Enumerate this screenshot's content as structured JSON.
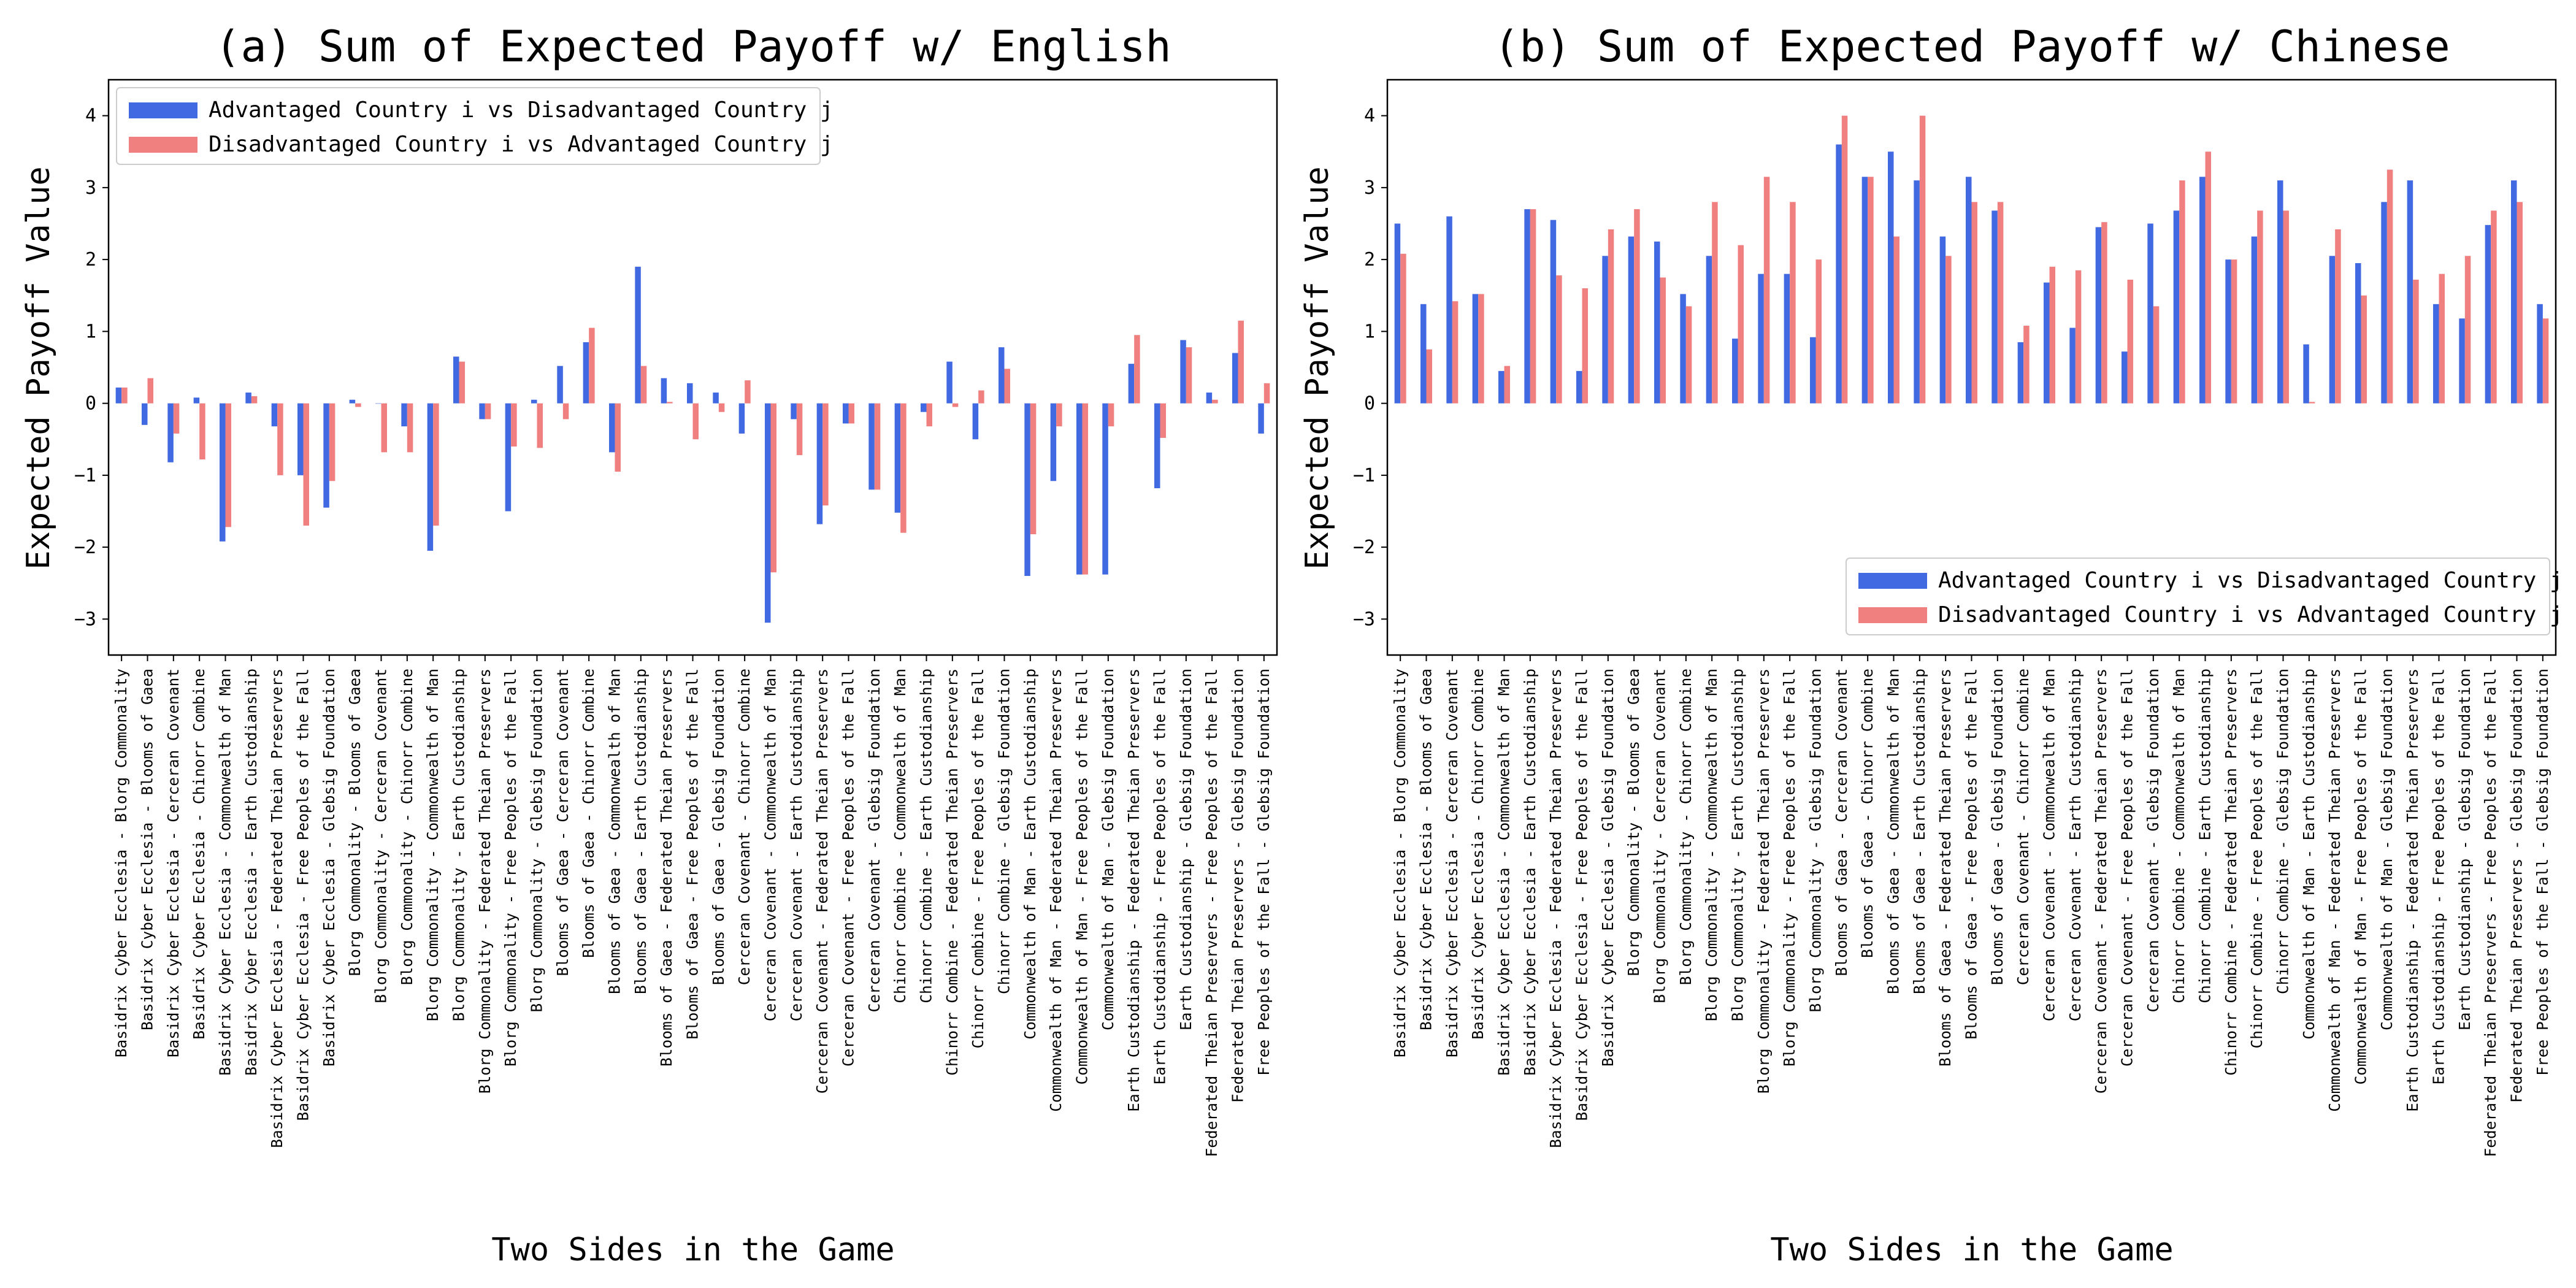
{
  "chart_data": [
    {
      "type": "bar",
      "title": "(a) Sum of Expected Payoff w/ English",
      "xlabel": "Two Sides in the Game",
      "ylabel": "Expected Payoff Value",
      "ylim": [
        -3.5,
        4.5
      ],
      "yticks": [
        -3,
        -2,
        -1,
        0,
        1,
        2,
        3,
        4
      ],
      "grid": false,
      "legend_position": "top-left",
      "colors": [
        "#4169e1",
        "#f08080"
      ],
      "categories": [
        "Basidrix Cyber Ecclesia - Blorg Commonality",
        "Basidrix Cyber Ecclesia - Blooms of Gaea",
        "Basidrix Cyber Ecclesia - Cerceran Covenant",
        "Basidrix Cyber Ecclesia - Chinorr Combine",
        "Basidrix Cyber Ecclesia - Commonwealth of Man",
        "Basidrix Cyber Ecclesia - Earth Custodianship",
        "Basidrix Cyber Ecclesia - Federated Theian Preservers",
        "Basidrix Cyber Ecclesia - Free Peoples of the Fall",
        "Basidrix Cyber Ecclesia - Glebsig Foundation",
        "Blorg Commonality - Blooms of Gaea",
        "Blorg Commonality - Cerceran Covenant",
        "Blorg Commonality - Chinorr Combine",
        "Blorg Commonality - Commonwealth of Man",
        "Blorg Commonality - Earth Custodianship",
        "Blorg Commonality - Federated Theian Preservers",
        "Blorg Commonality - Free Peoples of the Fall",
        "Blorg Commonality - Glebsig Foundation",
        "Blooms of Gaea - Cerceran Covenant",
        "Blooms of Gaea - Chinorr Combine",
        "Blooms of Gaea - Commonwealth of Man",
        "Blooms of Gaea - Earth Custodianship",
        "Blooms of Gaea - Federated Theian Preservers",
        "Blooms of Gaea - Free Peoples of the Fall",
        "Blooms of Gaea - Glebsig Foundation",
        "Cerceran Covenant - Chinorr Combine",
        "Cerceran Covenant - Commonwealth of Man",
        "Cerceran Covenant - Earth Custodianship",
        "Cerceran Covenant - Federated Theian Preservers",
        "Cerceran Covenant - Free Peoples of the Fall",
        "Cerceran Covenant - Glebsig Foundation",
        "Chinorr Combine - Commonwealth of Man",
        "Chinorr Combine - Earth Custodianship",
        "Chinorr Combine - Federated Theian Preservers",
        "Chinorr Combine - Free Peoples of the Fall",
        "Chinorr Combine - Glebsig Foundation",
        "Commonwealth of Man - Earth Custodianship",
        "Commonwealth of Man - Federated Theian Preservers",
        "Commonwealth of Man - Free Peoples of the Fall",
        "Commonwealth of Man - Glebsig Foundation",
        "Earth Custodianship - Federated Theian Preservers",
        "Earth Custodianship - Free Peoples of the Fall",
        "Earth Custodianship - Glebsig Foundation",
        "Federated Theian Preservers - Free Peoples of the Fall",
        "Federated Theian Preservers - Glebsig Foundation",
        "Free Peoples of the Fall - Glebsig Foundation"
      ],
      "series": [
        {
          "name": "Advantaged Country i vs Disadvantaged Country j",
          "values": [
            0.22,
            -0.3,
            -0.82,
            0.08,
            -1.92,
            0.15,
            -0.32,
            -1.0,
            -1.45,
            0.05,
            0.0,
            -0.32,
            -2.05,
            0.65,
            -0.22,
            -1.5,
            0.05,
            0.52,
            0.85,
            -0.68,
            1.9,
            0.35,
            0.28,
            0.15,
            -0.42,
            -3.05,
            -0.22,
            -1.68,
            -0.28,
            -1.2,
            -1.52,
            -0.12,
            0.58,
            -0.5,
            0.78,
            -2.4,
            -1.08,
            -2.38,
            -2.38,
            0.55,
            -1.18,
            0.88,
            0.15,
            0.7,
            -0.42
          ]
        },
        {
          "name": "Disadvantaged Country i vs Advantaged Country j",
          "values": [
            0.22,
            0.35,
            -0.42,
            -0.78,
            -1.72,
            0.1,
            -1.0,
            -1.7,
            -1.08,
            -0.05,
            -0.68,
            -0.68,
            -1.7,
            0.58,
            -0.22,
            -0.6,
            -0.62,
            -0.22,
            1.05,
            -0.95,
            0.52,
            0.02,
            -0.5,
            -0.12,
            0.32,
            -2.35,
            -0.72,
            -1.42,
            -0.28,
            -1.2,
            -1.8,
            -0.32,
            -0.05,
            0.18,
            0.48,
            -1.82,
            -0.32,
            -2.38,
            -0.32,
            0.95,
            -0.48,
            0.78,
            0.05,
            1.15,
            0.28
          ]
        }
      ]
    },
    {
      "type": "bar",
      "title": "(b) Sum of Expected Payoff w/ Chinese",
      "xlabel": "Two Sides in the Game",
      "ylabel": "Expected Payoff Value",
      "ylim": [
        -3.5,
        4.5
      ],
      "yticks": [
        -3,
        -2,
        -1,
        0,
        1,
        2,
        3,
        4
      ],
      "grid": false,
      "legend_position": "bottom-right",
      "colors": [
        "#4169e1",
        "#f08080"
      ],
      "categories": [
        "Basidrix Cyber Ecclesia - Blorg Commonality",
        "Basidrix Cyber Ecclesia - Blooms of Gaea",
        "Basidrix Cyber Ecclesia - Cerceran Covenant",
        "Basidrix Cyber Ecclesia - Chinorr Combine",
        "Basidrix Cyber Ecclesia - Commonwealth of Man",
        "Basidrix Cyber Ecclesia - Earth Custodianship",
        "Basidrix Cyber Ecclesia - Federated Theian Preservers",
        "Basidrix Cyber Ecclesia - Free Peoples of the Fall",
        "Basidrix Cyber Ecclesia - Glebsig Foundation",
        "Blorg Commonality - Blooms of Gaea",
        "Blorg Commonality - Cerceran Covenant",
        "Blorg Commonality - Chinorr Combine",
        "Blorg Commonality - Commonwealth of Man",
        "Blorg Commonality - Earth Custodianship",
        "Blorg Commonality - Federated Theian Preservers",
        "Blorg Commonality - Free Peoples of the Fall",
        "Blorg Commonality - Glebsig Foundation",
        "Blooms of Gaea - Cerceran Covenant",
        "Blooms of Gaea - Chinorr Combine",
        "Blooms of Gaea - Commonwealth of Man",
        "Blooms of Gaea - Earth Custodianship",
        "Blooms of Gaea - Federated Theian Preservers",
        "Blooms of Gaea - Free Peoples of the Fall",
        "Blooms of Gaea - Glebsig Foundation",
        "Cerceran Covenant - Chinorr Combine",
        "Cerceran Covenant - Commonwealth of Man",
        "Cerceran Covenant - Earth Custodianship",
        "Cerceran Covenant - Federated Theian Preservers",
        "Cerceran Covenant - Free Peoples of the Fall",
        "Cerceran Covenant - Glebsig Foundation",
        "Chinorr Combine - Commonwealth of Man",
        "Chinorr Combine - Earth Custodianship",
        "Chinorr Combine - Federated Theian Preservers",
        "Chinorr Combine - Free Peoples of the Fall",
        "Chinorr Combine - Glebsig Foundation",
        "Commonwealth of Man - Earth Custodianship",
        "Commonwealth of Man - Federated Theian Preservers",
        "Commonwealth of Man - Free Peoples of the Fall",
        "Commonwealth of Man - Glebsig Foundation",
        "Earth Custodianship - Federated Theian Preservers",
        "Earth Custodianship - Free Peoples of the Fall",
        "Earth Custodianship - Glebsig Foundation",
        "Federated Theian Preservers - Free Peoples of the Fall",
        "Federated Theian Preservers - Glebsig Foundation",
        "Free Peoples of the Fall - Glebsig Foundation"
      ],
      "series": [
        {
          "name": "Advantaged Country i vs Disadvantaged Country j",
          "values": [
            2.5,
            1.38,
            2.6,
            1.52,
            0.45,
            2.7,
            2.55,
            0.45,
            2.05,
            2.32,
            2.25,
            1.52,
            2.05,
            0.9,
            1.8,
            1.8,
            0.92,
            3.6,
            3.15,
            3.5,
            3.1,
            2.32,
            3.15,
            2.68,
            0.85,
            1.68,
            1.05,
            2.45,
            0.72,
            2.5,
            2.68,
            3.15,
            2.0,
            2.32,
            3.1,
            0.82,
            2.05,
            1.95,
            2.8,
            3.1,
            1.38,
            1.18,
            2.48,
            3.1,
            1.38
          ]
        },
        {
          "name": "Disadvantaged Country i vs Advantaged Country j",
          "values": [
            2.08,
            0.75,
            1.42,
            1.52,
            0.52,
            2.7,
            1.78,
            1.6,
            2.42,
            2.7,
            1.75,
            1.35,
            2.8,
            2.2,
            3.15,
            2.8,
            2.0,
            4.0,
            3.15,
            2.32,
            4.0,
            2.05,
            2.8,
            2.8,
            1.08,
            1.9,
            1.85,
            2.52,
            1.72,
            1.35,
            3.1,
            3.5,
            2.0,
            2.68,
            2.68,
            0.02,
            2.42,
            1.5,
            3.25,
            1.72,
            1.8,
            2.05,
            2.68,
            2.8,
            1.18
          ]
        }
      ]
    }
  ]
}
